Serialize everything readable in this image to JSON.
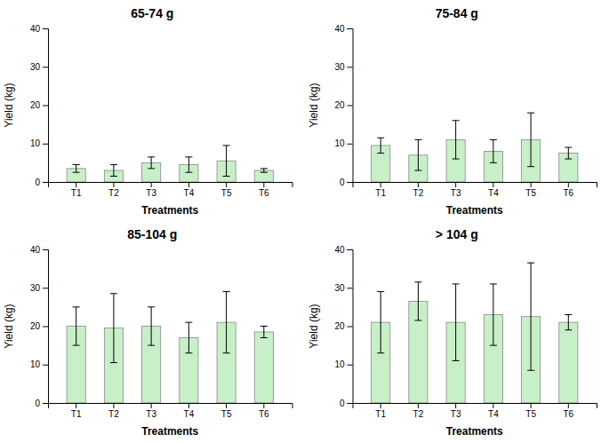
{
  "chart_data": [
    {
      "type": "bar",
      "title": "65-74 g",
      "categories": [
        "T1",
        "T2",
        "T3",
        "T4",
        "T5",
        "T6"
      ],
      "values": [
        3.5,
        3.0,
        5.0,
        4.5,
        5.5,
        3.0
      ],
      "errors": [
        1.0,
        1.5,
        1.5,
        2.0,
        4.0,
        0.5
      ],
      "color": "#c8f0c8",
      "xlabel": "Treatments",
      "ylabel": "Yield (kg)",
      "ylim": [
        0,
        40
      ],
      "yticks": [
        0,
        10,
        20,
        30,
        40
      ]
    },
    {
      "type": "bar",
      "title": "75-84 g",
      "categories": [
        "T1",
        "T2",
        "T3",
        "T4",
        "T5",
        "T6"
      ],
      "values": [
        9.5,
        7.0,
        11.0,
        8.0,
        11.0,
        7.5
      ],
      "errors": [
        2.0,
        4.0,
        5.0,
        3.0,
        7.0,
        1.5
      ],
      "color": "#c8f0c8",
      "xlabel": "Treatments",
      "ylabel": "Yield (kg)",
      "ylim": [
        0,
        40
      ],
      "yticks": [
        0,
        10,
        20,
        30,
        40
      ]
    },
    {
      "type": "bar",
      "title": "85-104 g",
      "categories": [
        "T1",
        "T2",
        "T3",
        "T4",
        "T5",
        "T6"
      ],
      "values": [
        20.0,
        19.5,
        20.0,
        17.0,
        21.0,
        18.5
      ],
      "errors": [
        5.0,
        9.0,
        5.0,
        4.0,
        8.0,
        1.5
      ],
      "color": "#c8f0c8",
      "xlabel": "Treatments",
      "ylabel": "Yield (kg)",
      "ylim": [
        0,
        40
      ],
      "yticks": [
        0,
        10,
        20,
        30,
        40
      ]
    },
    {
      "type": "bar",
      "title": "> 104 g",
      "categories": [
        "T1",
        "T2",
        "T3",
        "T4",
        "T5",
        "T6"
      ],
      "values": [
        21.0,
        26.5,
        21.0,
        23.0,
        22.5,
        21.0
      ],
      "errors": [
        8.0,
        5.0,
        10.0,
        8.0,
        14.0,
        2.0
      ],
      "color": "#c8f0c8",
      "xlabel": "Treatments",
      "ylabel": "Yield (kg)",
      "ylim": [
        0,
        40
      ],
      "yticks": [
        0,
        10,
        20,
        30,
        40
      ]
    }
  ]
}
